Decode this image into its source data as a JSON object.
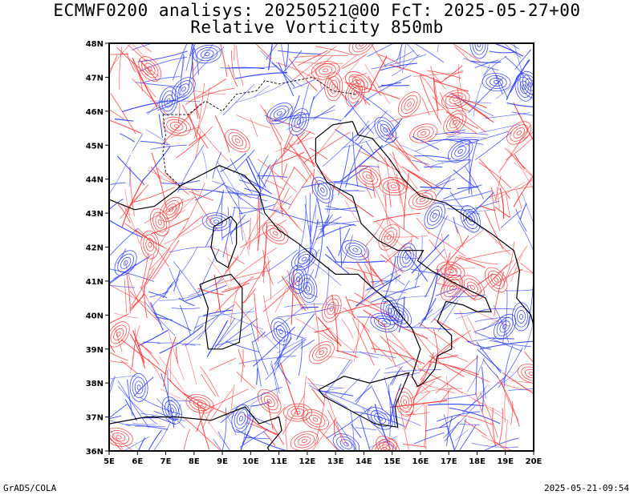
{
  "header": {
    "line1": "ECMWF0200 analisys: 20250521@00 FcT: 2025-05-27+00",
    "line2": "Relative Vorticity 850mb"
  },
  "footer": {
    "credit": "GrADS/COLA",
    "timestamp": "2025-05-21-09:54"
  },
  "map": {
    "lon_range": [
      5,
      20
    ],
    "lat_range": [
      36,
      48
    ],
    "lon_labels": [
      "5E",
      "6E",
      "7E",
      "8E",
      "9E",
      "10E",
      "11E",
      "12E",
      "13E",
      "14E",
      "15E",
      "16E",
      "17E",
      "18E",
      "19E",
      "20E"
    ],
    "lat_labels": [
      "36N",
      "37N",
      "38N",
      "39N",
      "40N",
      "41N",
      "42N",
      "43N",
      "44N",
      "45N",
      "46N",
      "47N",
      "48N"
    ],
    "colors": {
      "positive_vorticity": "#ff3a3a",
      "negative_vorticity": "#2a3dff",
      "coastline": "#000000"
    }
  }
}
